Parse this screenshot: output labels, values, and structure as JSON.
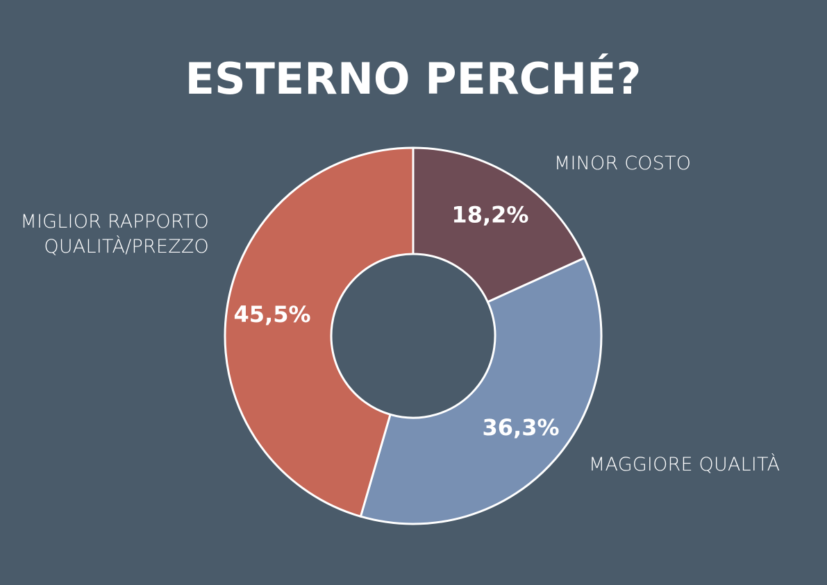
{
  "chart_data": {
    "type": "donut",
    "title": "ESTERNO PERCHÉ?",
    "categories": [
      "MINOR COSTO",
      "MAGGIORE QUALITÀ",
      "MIGLIOR RAPPORTO QUALITÀ/PREZZO"
    ],
    "values": [
      18.2,
      36.3,
      45.5
    ],
    "value_labels": [
      "18,2%",
      "36,3%",
      "45,5%"
    ],
    "colors": [
      "#6e4c55",
      "#7890b3",
      "#c66757"
    ]
  }
}
